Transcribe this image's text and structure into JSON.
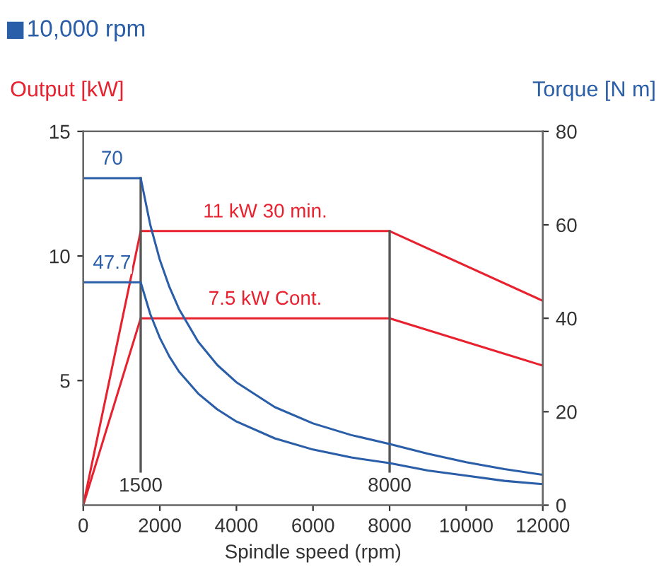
{
  "chart_data": {
    "type": "line",
    "title": "10,000 rpm",
    "xlabel": "Spindle speed (rpm)",
    "ylabel": "Output [kW]",
    "y2label": "Torque [N m]",
    "xlim": [
      0,
      12000
    ],
    "xticks": [
      0,
      2000,
      4000,
      6000,
      8000,
      10000,
      12000
    ],
    "ylim": [
      0,
      15
    ],
    "yticks": [
      5,
      10,
      15
    ],
    "y2lim": [
      0,
      80
    ],
    "y2ticks": [
      0,
      20,
      40,
      60,
      80
    ],
    "grid": false,
    "legend": false,
    "series": [
      {
        "name": "11 kW 30 min.",
        "color": "#e8212e",
        "x": [
          0,
          1500,
          8000,
          12000
        ],
        "values": [
          0,
          11,
          11,
          8.2
        ]
      },
      {
        "name": "7.5 kW Cont.",
        "color": "#e8212e",
        "x": [
          0,
          1500,
          8000,
          12000
        ],
        "values": [
          0,
          7.5,
          7.5,
          5.6
        ]
      },
      {
        "color": "#2a5ea8",
        "axis": "y2",
        "x": [
          0,
          1500,
          1750,
          2000,
          2250,
          2500,
          3000,
          3500,
          4000,
          5000,
          6000,
          7000,
          8000,
          9000,
          10000,
          11000,
          12000
        ],
        "values": [
          70,
          70,
          60,
          52.5,
          46.7,
          42,
          35,
          30,
          26.3,
          21,
          17.5,
          15,
          13.1,
          11.0,
          9.2,
          7.7,
          6.5
        ],
        "value_labels": [
          "70",
          null,
          null,
          null,
          null,
          null,
          null,
          null,
          null,
          null,
          null,
          null,
          null,
          null,
          null,
          null,
          null
        ]
      },
      {
        "color": "#2a5ea8",
        "axis": "y2",
        "x": [
          0,
          1500,
          1750,
          2000,
          2250,
          2500,
          3000,
          3500,
          4000,
          5000,
          6000,
          7000,
          8000,
          9000,
          10000,
          11000,
          12000
        ],
        "values": [
          47.7,
          47.7,
          40.9,
          35.8,
          31.8,
          28.6,
          23.9,
          20.5,
          17.9,
          14.3,
          11.9,
          10.2,
          9.0,
          7.4,
          6.3,
          5.2,
          4.5
        ],
        "value_labels": [
          "47.7",
          null,
          null,
          null,
          null,
          null,
          null,
          null,
          null,
          null,
          null,
          null,
          null,
          null,
          null,
          null,
          null
        ]
      }
    ],
    "ref_lines": [
      {
        "axis": "x",
        "value": 1500,
        "label": "1500",
        "color": "#555555"
      },
      {
        "axis": "x",
        "value": 8000,
        "label": "8000",
        "color": "#555555"
      }
    ]
  }
}
